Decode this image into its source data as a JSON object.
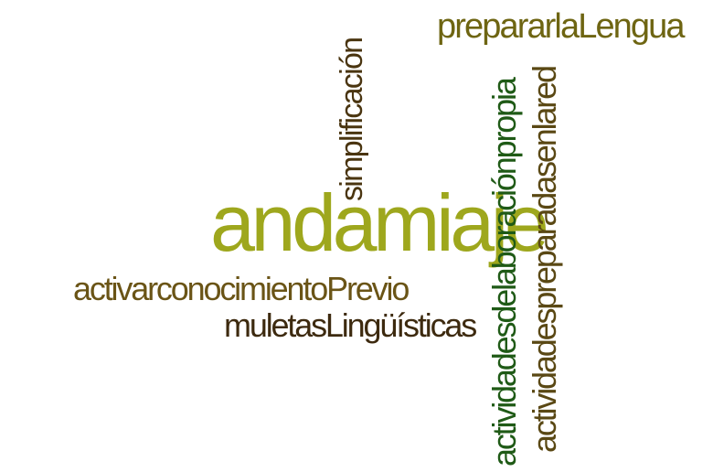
{
  "words": {
    "andamiaje": {
      "text": "andamiaje",
      "color": "#9ea71d"
    },
    "preparar": {
      "text": "prepararlaLengua",
      "color": "#6e6512"
    },
    "simplificacion": {
      "text": "simplificación",
      "color": "#4a3510"
    },
    "elaboracion": {
      "text": "actividadesdelaboraciónpropia",
      "color": "#1f5a16"
    },
    "en_red": {
      "text": "actividadespreparadasenlared",
      "color": "#5a4814"
    },
    "activar": {
      "text": "activarconocimientoPrevio",
      "color": "#6a5416"
    },
    "muletas": {
      "text": "muletasLingüísticas",
      "color": "#3d2a0f"
    }
  }
}
